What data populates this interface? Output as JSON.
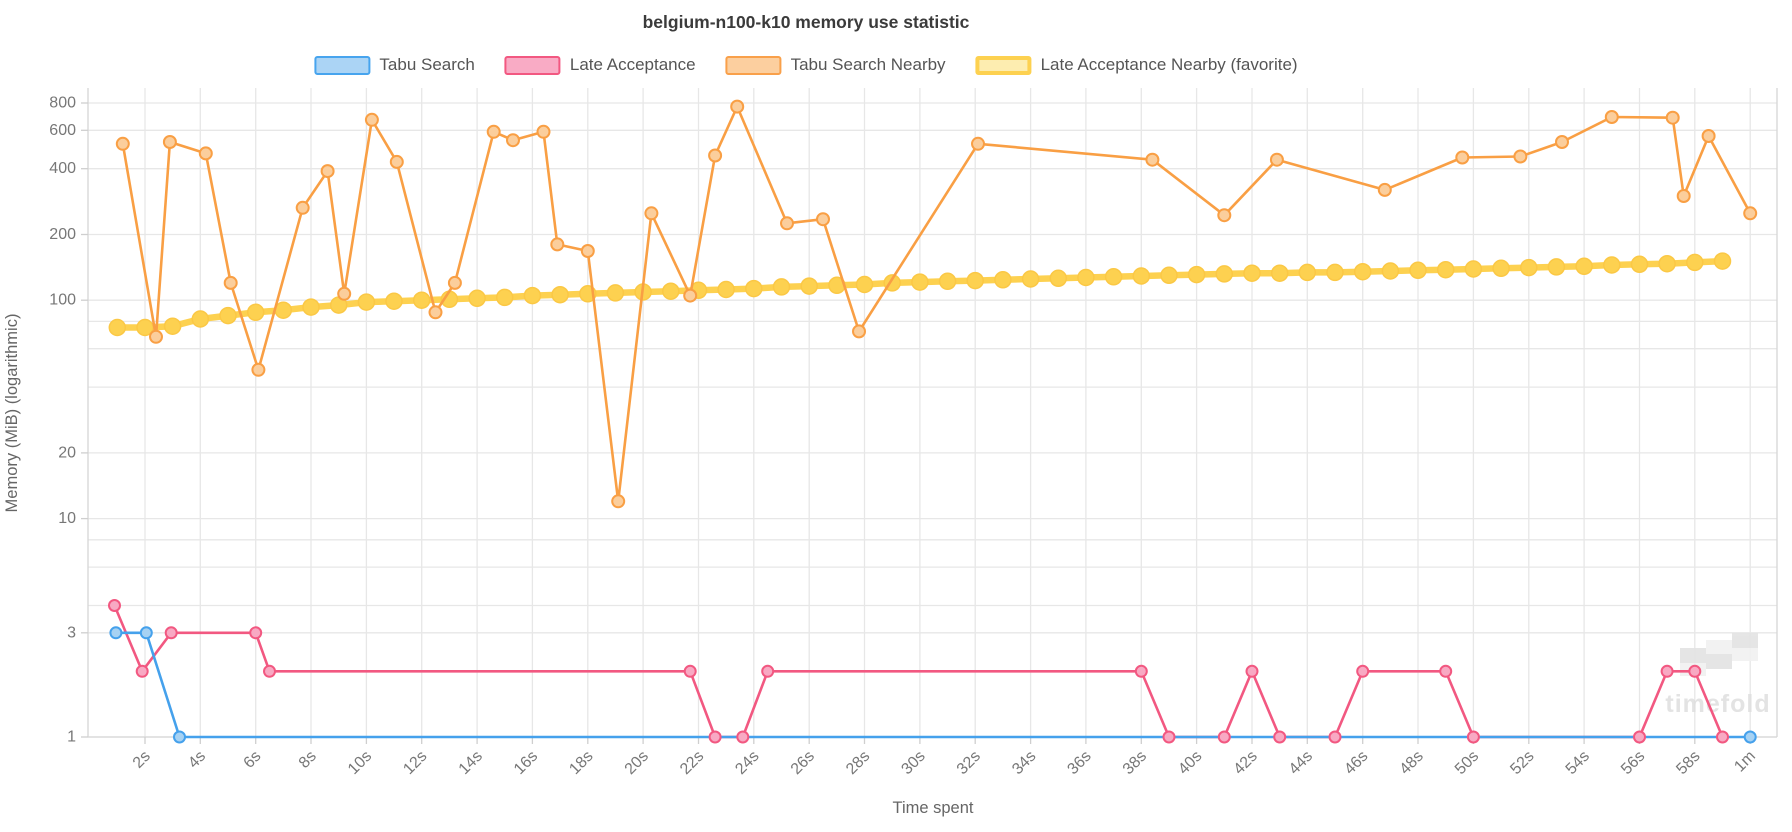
{
  "title": "belgium-n100-k10 memory use statistic",
  "legend": [
    {
      "label": "Tabu Search",
      "fill": "#abd4f5",
      "border": "#47a4ee",
      "border_width": 2
    },
    {
      "label": "Late Acceptance",
      "fill": "#f9abc5",
      "border": "#f25881",
      "border_width": 2
    },
    {
      "label": "Tabu Search Nearby",
      "fill": "#fccf9f",
      "border": "#f9a04a",
      "border_width": 2
    },
    {
      "label": "Late Acceptance Nearby (favorite)",
      "fill": "#fdedb0",
      "border": "#fdd150",
      "border_width": 4
    }
  ],
  "watermark": {
    "text": "timefold"
  },
  "chart_data": {
    "type": "line",
    "title": "belgium-n100-k10 memory use statistic",
    "xlabel": "Time spent",
    "ylabel": "Memory (MiB) (logarithmic)",
    "y_scale": "log",
    "ylim": [
      1,
      900
    ],
    "xlim_seconds": [
      0,
      61
    ],
    "grid": true,
    "legend_position": "top",
    "x_ticks": [
      {
        "t": 2,
        "label": "2s"
      },
      {
        "t": 4,
        "label": "4s"
      },
      {
        "t": 6,
        "label": "6s"
      },
      {
        "t": 8,
        "label": "8s"
      },
      {
        "t": 10,
        "label": "10s"
      },
      {
        "t": 12,
        "label": "12s"
      },
      {
        "t": 14,
        "label": "14s"
      },
      {
        "t": 16,
        "label": "16s"
      },
      {
        "t": 18,
        "label": "18s"
      },
      {
        "t": 20,
        "label": "20s"
      },
      {
        "t": 22,
        "label": "22s"
      },
      {
        "t": 24,
        "label": "24s"
      },
      {
        "t": 26,
        "label": "26s"
      },
      {
        "t": 28,
        "label": "28s"
      },
      {
        "t": 30,
        "label": "30s"
      },
      {
        "t": 32,
        "label": "32s"
      },
      {
        "t": 34,
        "label": "34s"
      },
      {
        "t": 36,
        "label": "36s"
      },
      {
        "t": 38,
        "label": "38s"
      },
      {
        "t": 40,
        "label": "40s"
      },
      {
        "t": 42,
        "label": "42s"
      },
      {
        "t": 44,
        "label": "44s"
      },
      {
        "t": 46,
        "label": "46s"
      },
      {
        "t": 48,
        "label": "48s"
      },
      {
        "t": 50,
        "label": "50s"
      },
      {
        "t": 52,
        "label": "52s"
      },
      {
        "t": 54,
        "label": "54s"
      },
      {
        "t": 56,
        "label": "56s"
      },
      {
        "t": 58,
        "label": "58s"
      },
      {
        "t": 60,
        "label": "1m"
      }
    ],
    "y_ticks_labeled": [
      {
        "v": 800,
        "label": "800"
      },
      {
        "v": 600,
        "label": "600"
      },
      {
        "v": 400,
        "label": "400"
      },
      {
        "v": 200,
        "label": "200"
      },
      {
        "v": 100,
        "label": "100"
      },
      {
        "v": 20,
        "label": "20"
      },
      {
        "v": 10,
        "label": "10"
      },
      {
        "v": 3,
        "label": "3"
      },
      {
        "v": 1,
        "label": "1"
      }
    ],
    "y_gridlines": [
      800,
      600,
      400,
      200,
      100,
      80,
      60,
      40,
      20,
      10,
      8,
      6,
      4,
      3,
      1
    ],
    "series": [
      {
        "name": "Tabu Search",
        "color": "#45a1ec",
        "marker_fill": "#a7d2f3",
        "marker_stroke": "#45a1ec",
        "line_width": 2.6,
        "marker_radius": 5.5,
        "marker_stroke_width": 2,
        "points": [
          [
            0.95,
            3
          ],
          [
            2.05,
            3
          ],
          [
            3.25,
            1
          ],
          [
            60,
            1
          ]
        ]
      },
      {
        "name": "Late Acceptance",
        "color": "#f25881",
        "marker_fill": "#f8a9c3",
        "marker_stroke": "#f25881",
        "line_width": 2.6,
        "marker_radius": 5.5,
        "marker_stroke_width": 2,
        "points": [
          [
            0.9,
            4
          ],
          [
            1.9,
            2
          ],
          [
            2.95,
            3
          ],
          [
            6,
            3
          ],
          [
            6.5,
            2
          ],
          [
            21.7,
            2
          ],
          [
            22.6,
            1
          ],
          [
            23.6,
            1
          ],
          [
            24.5,
            2
          ],
          [
            38,
            2
          ],
          [
            39,
            1
          ],
          [
            41,
            1
          ],
          [
            42,
            2
          ],
          [
            43,
            1
          ],
          [
            45,
            1
          ],
          [
            46,
            2
          ],
          [
            49,
            2
          ],
          [
            50,
            1
          ],
          [
            56,
            1
          ],
          [
            57,
            2
          ],
          [
            58,
            2
          ],
          [
            59,
            1
          ]
        ]
      },
      {
        "name": "Tabu Search Nearby",
        "color": "#f99f44",
        "marker_fill": "#fbce9c",
        "marker_stroke": "#f99f44",
        "line_width": 2.6,
        "marker_radius": 6,
        "marker_stroke_width": 2,
        "points": [
          [
            1.2,
            520
          ],
          [
            2.4,
            68
          ],
          [
            2.9,
            530
          ],
          [
            4.2,
            470
          ],
          [
            5.1,
            120
          ],
          [
            6.1,
            48
          ],
          [
            7.7,
            265
          ],
          [
            8.6,
            390
          ],
          [
            9.2,
            107
          ],
          [
            10.2,
            670
          ],
          [
            11.1,
            430
          ],
          [
            12.5,
            88
          ],
          [
            13.2,
            120
          ],
          [
            14.6,
            590
          ],
          [
            15.3,
            540
          ],
          [
            16.4,
            590
          ],
          [
            16.9,
            180
          ],
          [
            18,
            168
          ],
          [
            19.1,
            12
          ],
          [
            20.3,
            250
          ],
          [
            21.7,
            105
          ],
          [
            22.6,
            460
          ],
          [
            23.4,
            770
          ],
          [
            25.2,
            225
          ],
          [
            26.5,
            235
          ],
          [
            27.8,
            72
          ],
          [
            32.1,
            520
          ],
          [
            38.4,
            440
          ],
          [
            41,
            245
          ],
          [
            42.9,
            440
          ],
          [
            46.8,
            320
          ],
          [
            49.6,
            450
          ],
          [
            51.7,
            455
          ],
          [
            53.2,
            530
          ],
          [
            55,
            690
          ],
          [
            57.2,
            685
          ],
          [
            57.6,
            300
          ],
          [
            58.5,
            565
          ],
          [
            60,
            250
          ]
        ]
      },
      {
        "name": "Late Acceptance Nearby (favorite)",
        "color": "#fdd150",
        "marker_fill": "#fdd150",
        "marker_stroke": "#fbc845",
        "line_width": 6.5,
        "marker_radius": 8,
        "marker_stroke_width": 1.5,
        "points": [
          [
            1,
            75
          ],
          [
            2,
            75
          ],
          [
            3,
            76
          ],
          [
            4,
            82
          ],
          [
            5,
            85
          ],
          [
            6,
            88
          ],
          [
            7,
            90
          ],
          [
            8,
            93
          ],
          [
            9,
            95
          ],
          [
            10,
            98
          ],
          [
            11,
            99
          ],
          [
            12,
            100
          ],
          [
            13,
            101
          ],
          [
            14,
            102
          ],
          [
            15,
            103
          ],
          [
            16,
            105
          ],
          [
            17,
            106
          ],
          [
            18,
            107
          ],
          [
            19,
            108
          ],
          [
            20,
            109
          ],
          [
            21,
            110
          ],
          [
            22,
            111
          ],
          [
            23,
            112
          ],
          [
            24,
            113
          ],
          [
            25,
            115
          ],
          [
            26,
            116
          ],
          [
            27,
            117
          ],
          [
            28,
            118
          ],
          [
            29,
            120
          ],
          [
            30,
            121
          ],
          [
            31,
            122
          ],
          [
            32,
            123
          ],
          [
            33,
            124
          ],
          [
            34,
            125
          ],
          [
            35,
            126
          ],
          [
            36,
            127
          ],
          [
            37,
            128
          ],
          [
            38,
            129
          ],
          [
            39,
            130
          ],
          [
            40,
            131
          ],
          [
            41,
            132
          ],
          [
            42,
            133
          ],
          [
            43,
            133
          ],
          [
            44,
            134
          ],
          [
            45,
            134
          ],
          [
            46,
            135
          ],
          [
            47,
            136
          ],
          [
            48,
            137
          ],
          [
            49,
            138
          ],
          [
            50,
            139
          ],
          [
            51,
            140
          ],
          [
            52,
            141
          ],
          [
            53,
            142
          ],
          [
            54,
            143
          ],
          [
            55,
            145
          ],
          [
            56,
            146
          ],
          [
            57,
            147
          ],
          [
            58,
            149
          ],
          [
            59,
            151
          ]
        ]
      }
    ]
  }
}
